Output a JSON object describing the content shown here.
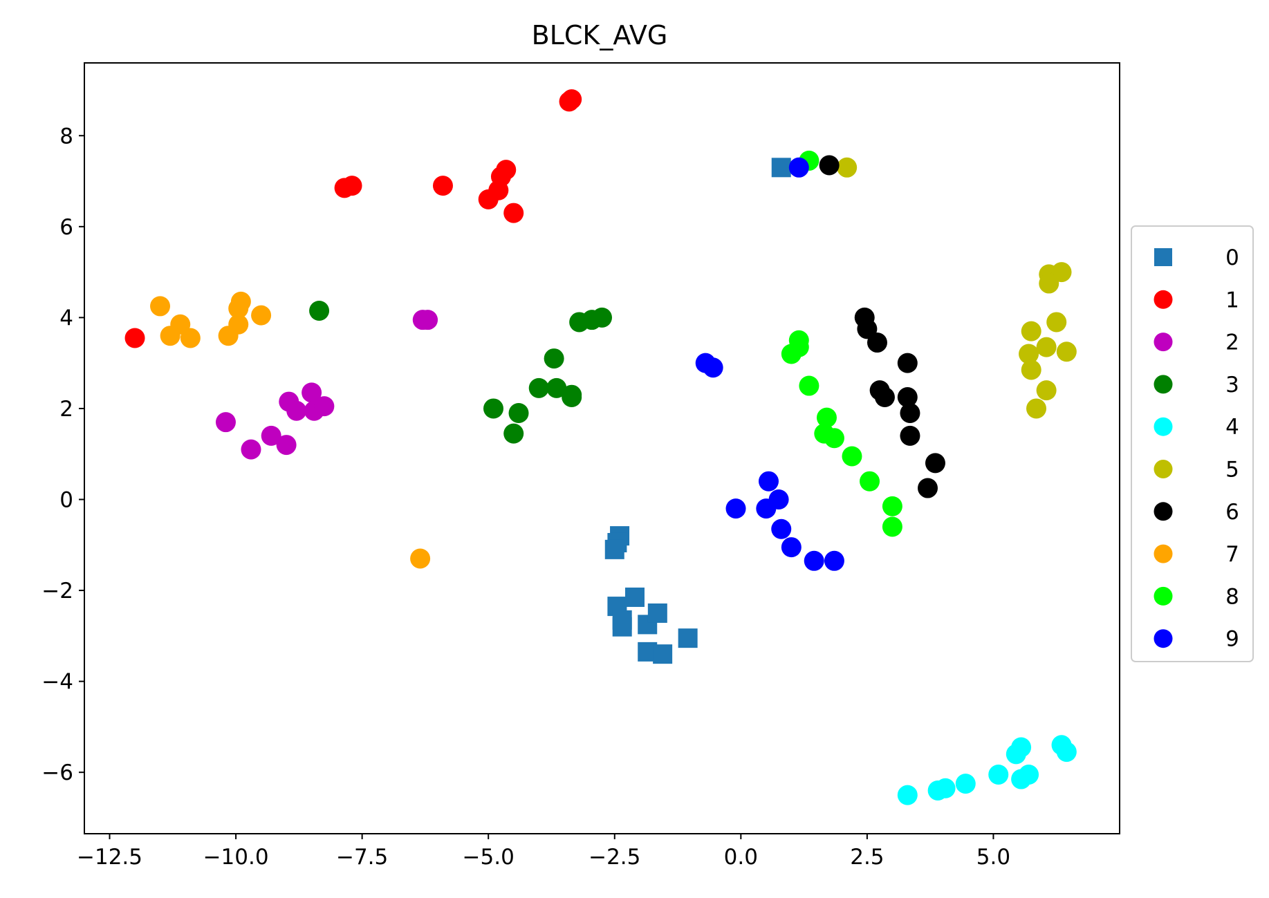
{
  "chart_data": {
    "type": "scatter",
    "title": "BLCK_AVG",
    "xlabel": "",
    "ylabel": "",
    "xlim": [
      -13.0,
      7.5
    ],
    "ylim": [
      -7.35,
      9.6
    ],
    "xticks": [
      -12.5,
      -10.0,
      -7.5,
      -5.0,
      -2.5,
      0.0,
      2.5,
      5.0
    ],
    "xtick_labels": [
      "−12.5",
      "−10.0",
      "−7.5",
      "−5.0",
      "−2.5",
      "0.0",
      "2.5",
      "5.0"
    ],
    "yticks": [
      8,
      6,
      4,
      2,
      0,
      -2,
      -4,
      -6
    ],
    "ytick_labels": [
      "8",
      "6",
      "4",
      "2",
      "0",
      "−2",
      "−4",
      "−6"
    ],
    "grid": false,
    "legend_position": "center-right-outside",
    "series": [
      {
        "name": "0",
        "color": "#1f77b4",
        "marker": "square",
        "points": [
          [
            0.8,
            7.3
          ],
          [
            -2.4,
            -0.8
          ],
          [
            -2.45,
            -0.95
          ],
          [
            -2.5,
            -1.1
          ],
          [
            -2.45,
            -2.35
          ],
          [
            -2.1,
            -2.15
          ],
          [
            -2.35,
            -2.65
          ],
          [
            -2.35,
            -2.8
          ],
          [
            -1.85,
            -2.75
          ],
          [
            -1.65,
            -2.5
          ],
          [
            -1.85,
            -3.35
          ],
          [
            -1.55,
            -3.4
          ],
          [
            -1.05,
            -3.05
          ]
        ]
      },
      {
        "name": "1",
        "color": "#ff0000",
        "marker": "circle",
        "points": [
          [
            -3.35,
            8.8
          ],
          [
            -3.4,
            8.75
          ],
          [
            -7.85,
            6.85
          ],
          [
            -7.7,
            6.9
          ],
          [
            -5.9,
            6.9
          ],
          [
            -4.65,
            7.25
          ],
          [
            -4.75,
            7.1
          ],
          [
            -4.8,
            6.8
          ],
          [
            -5.0,
            6.6
          ],
          [
            -4.5,
            6.3
          ],
          [
            -12.0,
            3.55
          ]
        ]
      },
      {
        "name": "2",
        "color": "#bf00bf",
        "marker": "circle",
        "points": [
          [
            -6.3,
            3.95
          ],
          [
            -6.2,
            3.95
          ],
          [
            -10.2,
            1.7
          ],
          [
            -9.7,
            1.1
          ],
          [
            -9.3,
            1.4
          ],
          [
            -9.0,
            1.2
          ],
          [
            -8.95,
            2.15
          ],
          [
            -8.8,
            1.95
          ],
          [
            -8.5,
            2.35
          ],
          [
            -8.45,
            1.95
          ],
          [
            -8.25,
            2.05
          ]
        ]
      },
      {
        "name": "3",
        "color": "#008000",
        "marker": "circle",
        "points": [
          [
            -8.35,
            4.15
          ],
          [
            -3.2,
            3.9
          ],
          [
            -2.95,
            3.95
          ],
          [
            -2.75,
            4.0
          ],
          [
            -3.7,
            3.1
          ],
          [
            -4.0,
            2.45
          ],
          [
            -3.65,
            2.45
          ],
          [
            -3.35,
            2.3
          ],
          [
            -3.35,
            2.25
          ],
          [
            -4.9,
            2.0
          ],
          [
            -4.4,
            1.9
          ],
          [
            -4.5,
            1.45
          ]
        ]
      },
      {
        "name": "4",
        "color": "#00ffff",
        "marker": "circle",
        "points": [
          [
            3.3,
            -6.5
          ],
          [
            3.9,
            -6.4
          ],
          [
            4.05,
            -6.35
          ],
          [
            4.45,
            -6.25
          ],
          [
            5.1,
            -6.05
          ],
          [
            5.55,
            -6.15
          ],
          [
            5.7,
            -6.05
          ],
          [
            5.45,
            -5.6
          ],
          [
            5.55,
            -5.45
          ],
          [
            6.35,
            -5.4
          ],
          [
            6.45,
            -5.55
          ]
        ]
      },
      {
        "name": "5",
        "color": "#bfbf00",
        "marker": "circle",
        "points": [
          [
            2.1,
            7.3
          ],
          [
            6.1,
            4.95
          ],
          [
            6.35,
            5.0
          ],
          [
            6.1,
            4.75
          ],
          [
            6.25,
            3.9
          ],
          [
            5.75,
            3.7
          ],
          [
            5.7,
            3.2
          ],
          [
            6.05,
            3.35
          ],
          [
            6.45,
            3.25
          ],
          [
            5.75,
            2.85
          ],
          [
            6.05,
            2.4
          ],
          [
            5.85,
            2.0
          ]
        ]
      },
      {
        "name": "6",
        "color": "#000000",
        "marker": "circle",
        "points": [
          [
            1.75,
            7.35
          ],
          [
            2.45,
            4.0
          ],
          [
            2.5,
            3.75
          ],
          [
            2.7,
            3.45
          ],
          [
            3.3,
            3.0
          ],
          [
            2.75,
            2.4
          ],
          [
            2.85,
            2.25
          ],
          [
            3.3,
            2.25
          ],
          [
            3.35,
            1.9
          ],
          [
            3.35,
            1.4
          ],
          [
            3.85,
            0.8
          ],
          [
            3.7,
            0.25
          ]
        ]
      },
      {
        "name": "7",
        "color": "#ffa500",
        "marker": "circle",
        "points": [
          [
            -11.5,
            4.25
          ],
          [
            -11.1,
            3.85
          ],
          [
            -11.3,
            3.6
          ],
          [
            -10.9,
            3.55
          ],
          [
            -9.9,
            4.35
          ],
          [
            -9.95,
            4.2
          ],
          [
            -9.5,
            4.05
          ],
          [
            -9.95,
            3.85
          ],
          [
            -10.15,
            3.6
          ],
          [
            -6.35,
            -1.3
          ]
        ]
      },
      {
        "name": "8",
        "color": "#00ff00",
        "marker": "circle",
        "points": [
          [
            1.35,
            7.45
          ],
          [
            1.15,
            3.5
          ],
          [
            1.15,
            3.35
          ],
          [
            1.0,
            3.2
          ],
          [
            1.35,
            2.5
          ],
          [
            1.7,
            1.8
          ],
          [
            1.65,
            1.45
          ],
          [
            1.85,
            1.35
          ],
          [
            2.2,
            0.95
          ],
          [
            2.55,
            0.4
          ],
          [
            3.0,
            -0.15
          ],
          [
            3.0,
            -0.6
          ]
        ]
      },
      {
        "name": "9",
        "color": "#0000ff",
        "marker": "circle",
        "points": [
          [
            1.15,
            7.3
          ],
          [
            -0.7,
            3.0
          ],
          [
            -0.55,
            2.9
          ],
          [
            0.55,
            0.4
          ],
          [
            0.75,
            0.0
          ],
          [
            -0.1,
            -0.2
          ],
          [
            0.5,
            -0.2
          ],
          [
            0.8,
            -0.65
          ],
          [
            1.0,
            -1.05
          ],
          [
            1.45,
            -1.35
          ],
          [
            1.85,
            -1.35
          ]
        ]
      }
    ]
  }
}
